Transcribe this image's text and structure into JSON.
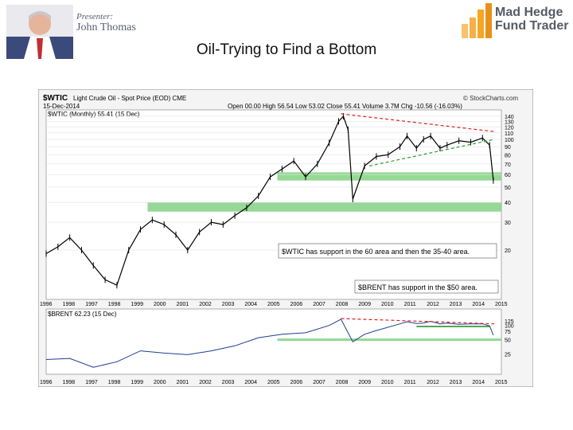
{
  "header": {
    "presenter_label": "Presenter:",
    "presenter_name": "John Thomas",
    "brand_line1": "Mad Hedge",
    "brand_line2": "Fund Trader",
    "brand_color": "#f5a623"
  },
  "slide": {
    "title": "Oil-Trying to Find a Bottom"
  },
  "chart_data": {
    "type": "line",
    "symbol": "$WTIC",
    "description": "Light Crude Oil - Spot Price (EOD) CME",
    "date": "15-Dec-2014",
    "stats": "Open 00.00  High 56.54  Low 53.02  Close 55.41  Volume 3.7M  Chg -10.56 (-16.03%)",
    "watermark": "© StockCharts.com",
    "legend_main": "$WTIC (Monthly) 55.41 (15 Dec)",
    "legend_lower": "$BRENT 62.23 (15 Dec)",
    "annotations": [
      "$WTIC has support in the 60 area and then the 35-40 area.",
      "$BRENT has support in the $50 area."
    ],
    "x_tick_labels": [
      "1996",
      "1998",
      "1997",
      "1998",
      "1999",
      "2000",
      "2001",
      "2002",
      "2003",
      "2004",
      "2005",
      "2006",
      "2007",
      "2008",
      "2009",
      "2010",
      "2011",
      "2012",
      "2013",
      "2014",
      "2015"
    ],
    "y_tick_labels": [
      "140",
      "130",
      "120",
      "110",
      "100",
      "90",
      "80",
      "70",
      "60",
      "50",
      "40",
      "30",
      "20"
    ],
    "lower_y_tick_labels": [
      "125",
      "100",
      "75",
      "50",
      "25"
    ],
    "y_scale": "log",
    "ylim": [
      10,
      150
    ],
    "lower_ylim": [
      10,
      140
    ],
    "support_zones": [
      {
        "chart": "upper",
        "low": 55,
        "high": 62
      },
      {
        "chart": "upper",
        "low": 35,
        "high": 40
      },
      {
        "chart": "lower",
        "low": 47,
        "high": 53
      }
    ],
    "support_color": "#7ccf7c",
    "resistance_color": "#e02020",
    "trend_color": "#2a9d2a",
    "series": [
      {
        "name": "$WTIC",
        "chart": "upper",
        "x": [
          1996.0,
          1996.5,
          1997.0,
          1997.5,
          1998.0,
          1998.5,
          1999.0,
          1999.5,
          2000.0,
          2000.5,
          2001.0,
          2001.5,
          2002.0,
          2002.5,
          2003.0,
          2003.5,
          2004.0,
          2004.5,
          2005.0,
          2005.5,
          2006.0,
          2006.5,
          2007.0,
          2007.5,
          2008.0,
          2008.4,
          2008.6,
          2008.8,
          2009.0,
          2009.5,
          2010.0,
          2010.5,
          2011.0,
          2011.3,
          2011.7,
          2012.0,
          2012.3,
          2012.7,
          2013.0,
          2013.5,
          2014.0,
          2014.5,
          2014.8,
          2014.96
        ],
        "y": [
          19,
          21,
          24,
          20,
          16,
          13,
          12,
          20,
          27,
          31,
          29,
          25,
          20,
          26,
          30,
          29,
          33,
          37,
          44,
          58,
          65,
          73,
          58,
          70,
          95,
          130,
          140,
          115,
          42,
          68,
          78,
          80,
          90,
          105,
          88,
          100,
          105,
          88,
          92,
          98,
          96,
          102,
          92,
          55
        ]
      },
      {
        "name": "$BRENT",
        "chart": "lower",
        "x": [
          1996.0,
          1997.0,
          1998.0,
          1999.0,
          2000.0,
          2001.0,
          2002.0,
          2003.0,
          2004.0,
          2005.0,
          2006.0,
          2007.0,
          2008.0,
          2008.5,
          2009.0,
          2009.5,
          2010.0,
          2011.0,
          2011.3,
          2011.7,
          2012.0,
          2012.3,
          2012.7,
          2013.0,
          2013.5,
          2014.0,
          2014.5,
          2014.8,
          2014.96
        ],
        "y": [
          19,
          20,
          13,
          17,
          29,
          26,
          24,
          29,
          37,
          55,
          65,
          70,
          100,
          135,
          45,
          65,
          78,
          108,
          120,
          110,
          112,
          122,
          108,
          112,
          106,
          108,
          108,
          98,
          62
        ]
      }
    ]
  }
}
